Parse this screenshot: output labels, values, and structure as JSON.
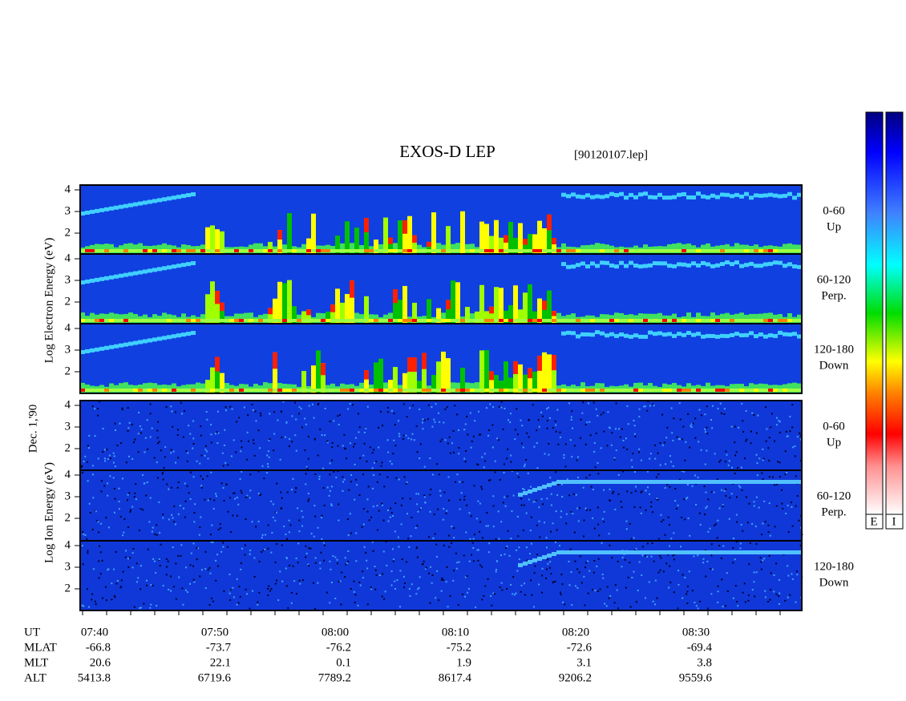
{
  "header": {
    "title": "EXOS-D LEP",
    "file": "[90120107.lep]"
  },
  "electron_panels": [
    {
      "ticks": [
        "4",
        "3",
        "2"
      ],
      "pitch": "0-60",
      "direction": "Up"
    },
    {
      "ticks": [
        "4",
        "3",
        "2"
      ],
      "pitch": "60-120",
      "direction": "Perp."
    },
    {
      "ticks": [
        "4",
        "3",
        "2"
      ],
      "pitch": "120-180",
      "direction": "Down"
    }
  ],
  "ion_panels": [
    {
      "ticks": [
        "4",
        "3",
        "2"
      ],
      "pitch": "0-60",
      "direction": "Up"
    },
    {
      "ticks": [
        "4",
        "3",
        "2"
      ],
      "pitch": "60-120",
      "direction": "Perp."
    },
    {
      "ticks": [
        "4",
        "3",
        "2"
      ],
      "pitch": "120-180",
      "direction": "Down"
    }
  ],
  "left_labels": {
    "electron": "Log  Electron  Energy  (eV)",
    "date": "Dec. 1,'90",
    "ion": "Log  Ion  Energy  (eV)"
  },
  "colorbar": {
    "labels": [
      "E",
      "I"
    ]
  },
  "footer": {
    "row_labels": [
      "UT",
      "MLAT",
      "MLT",
      "ALT"
    ],
    "columns": [
      [
        "07:40",
        "-66.8",
        "20.6",
        "5413.8"
      ],
      [
        "07:50",
        "-73.7",
        "22.1",
        "6719.6"
      ],
      [
        "08:00",
        "-76.2",
        "0.1",
        "7789.2"
      ],
      [
        "08:10",
        "-75.2",
        "1.9",
        "8617.4"
      ],
      [
        "08:20",
        "-72.6",
        "3.1",
        "9206.2"
      ],
      [
        "08:30",
        "-69.4",
        "3.8",
        "9559.6"
      ]
    ]
  }
}
